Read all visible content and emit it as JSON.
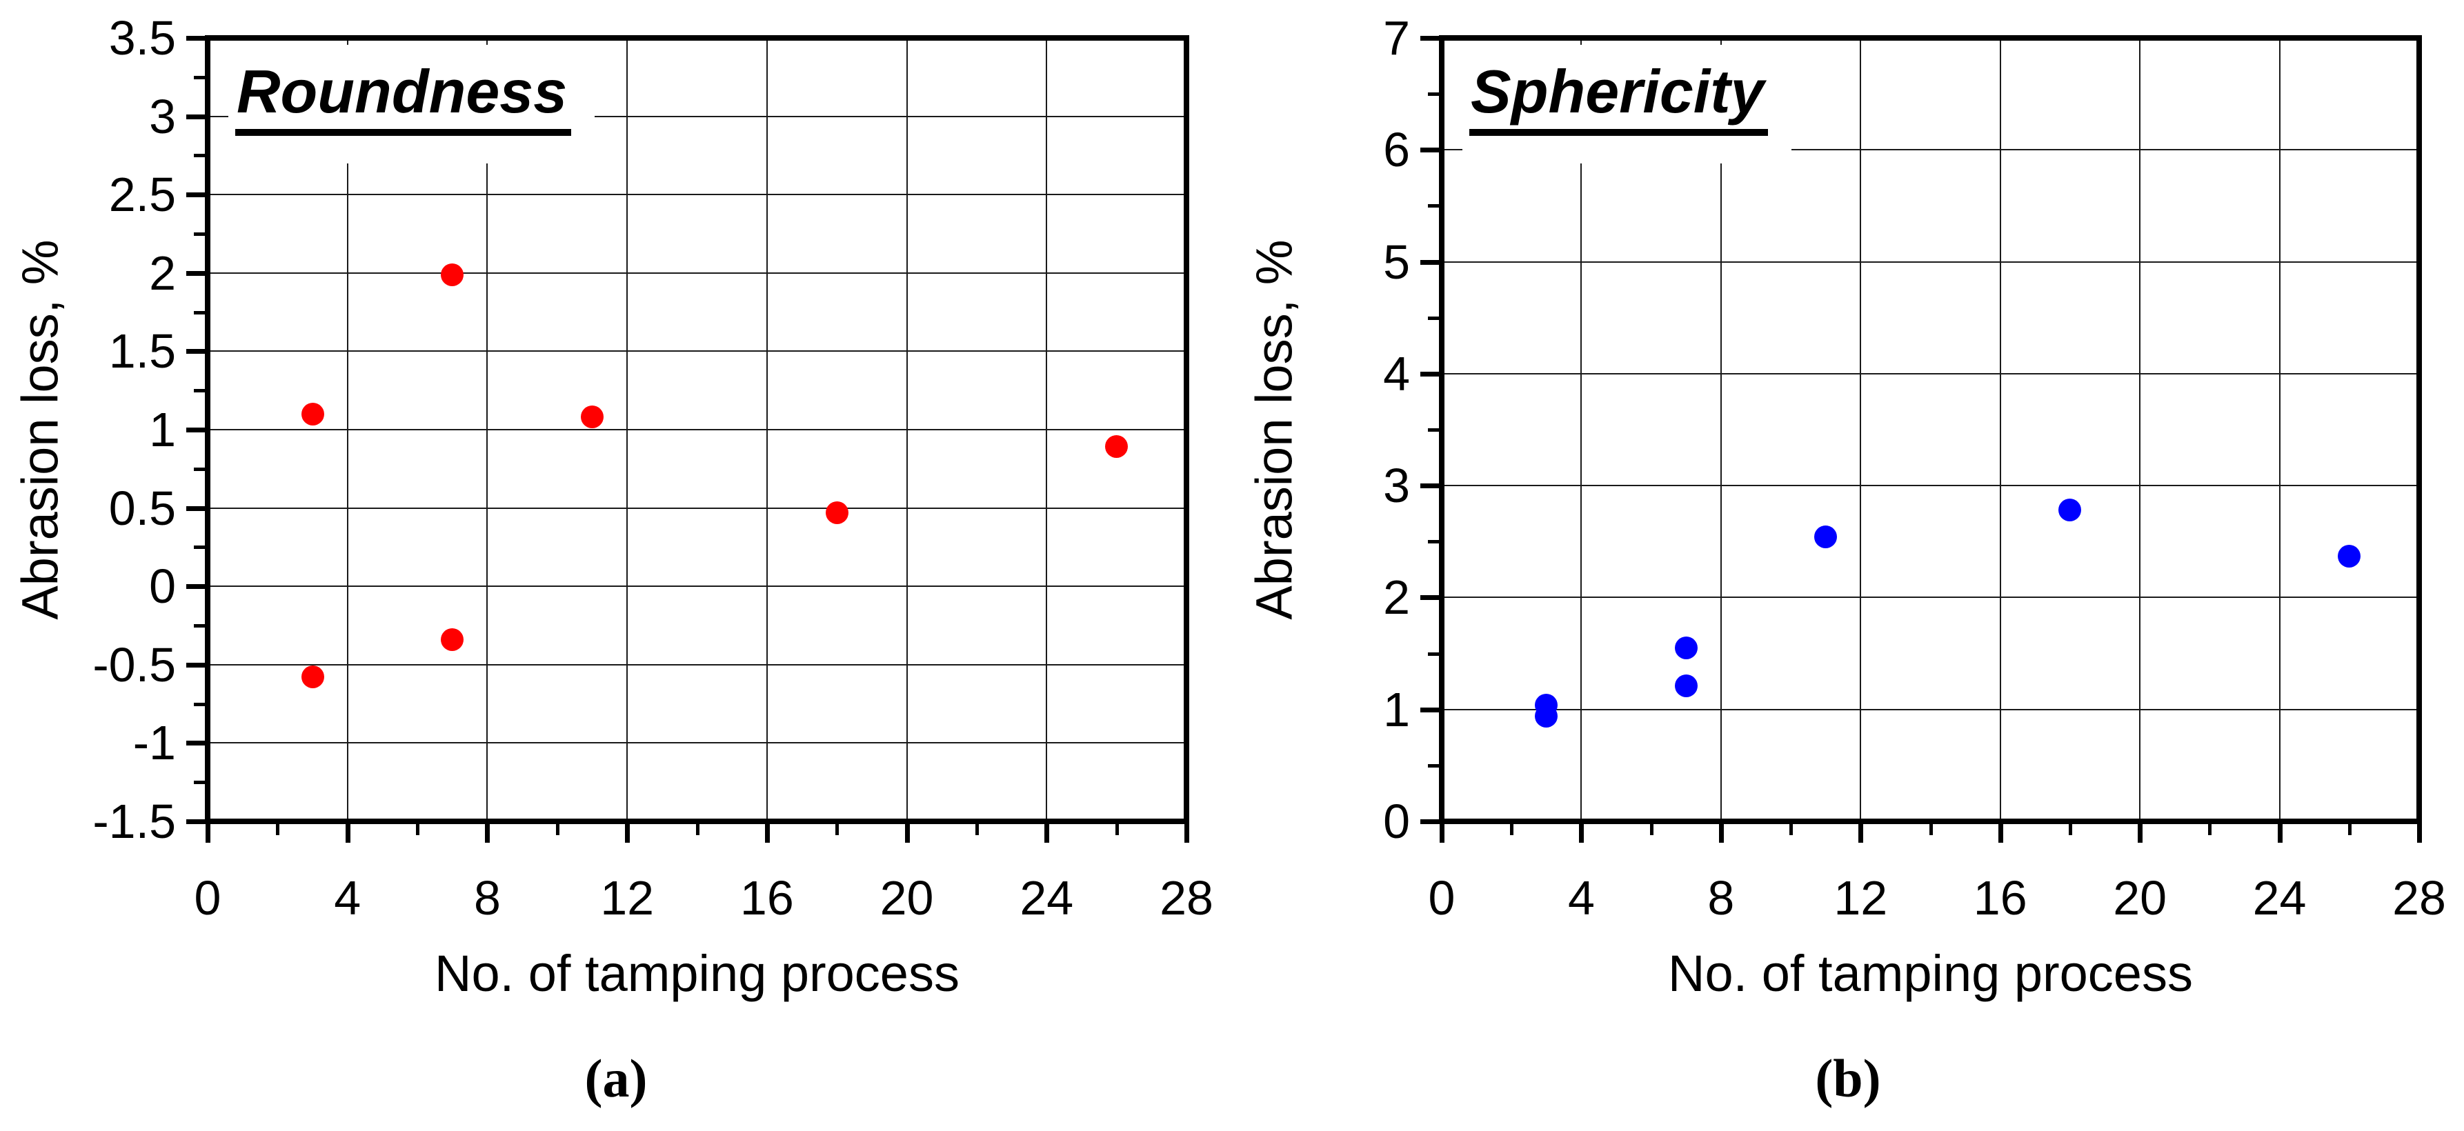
{
  "figure": {
    "background": "#ffffff",
    "caption_a": "(a)",
    "caption_b": "(b)"
  },
  "chart_data": [
    {
      "type": "scatter",
      "panel": "a",
      "title": "Roundness",
      "xlabel": "No. of tamping process",
      "ylabel": "Abrasion loss, %",
      "xlim": [
        0,
        28
      ],
      "ylim": [
        -1.5,
        3.5
      ],
      "x_major_step": 4,
      "x_minor_step": 2,
      "y_major_step": 0.5,
      "y_minor_step": 0.25,
      "x_tick_labels": [
        "0",
        "4",
        "8",
        "12",
        "16",
        "20",
        "24",
        "28"
      ],
      "y_tick_labels": [
        "-1.5",
        "-1",
        "-0.5",
        "0",
        "0.5",
        "1",
        "1.5",
        "2",
        "2.5",
        "3",
        "3.5"
      ],
      "grid": true,
      "legend": "none",
      "marker_color": "#ff0000",
      "marker_shape": "circle",
      "points": [
        [
          3,
          1.1
        ],
        [
          3,
          -0.58
        ],
        [
          7,
          1.99
        ],
        [
          7,
          -0.34
        ],
        [
          11,
          1.08
        ],
        [
          18,
          0.47
        ],
        [
          26,
          0.89
        ]
      ]
    },
    {
      "type": "scatter",
      "panel": "b",
      "title": "Sphericity",
      "xlabel": "No. of tamping process",
      "ylabel": "Abrasion loss, %",
      "xlim": [
        0,
        28
      ],
      "ylim": [
        0,
        7
      ],
      "x_major_step": 4,
      "x_minor_step": 2,
      "y_major_step": 1,
      "y_minor_step": 0.5,
      "x_tick_labels": [
        "0",
        "4",
        "8",
        "12",
        "16",
        "20",
        "24",
        "28"
      ],
      "y_tick_labels": [
        "0",
        "1",
        "2",
        "3",
        "4",
        "5",
        "6",
        "7"
      ],
      "grid": true,
      "legend": "none",
      "marker_color": "#0000ff",
      "marker_shape": "circle",
      "points": [
        [
          3,
          1.04
        ],
        [
          3,
          0.94
        ],
        [
          7,
          1.55
        ],
        [
          7,
          1.21
        ],
        [
          11,
          2.54
        ],
        [
          18,
          2.78
        ],
        [
          26,
          2.37
        ]
      ]
    }
  ]
}
